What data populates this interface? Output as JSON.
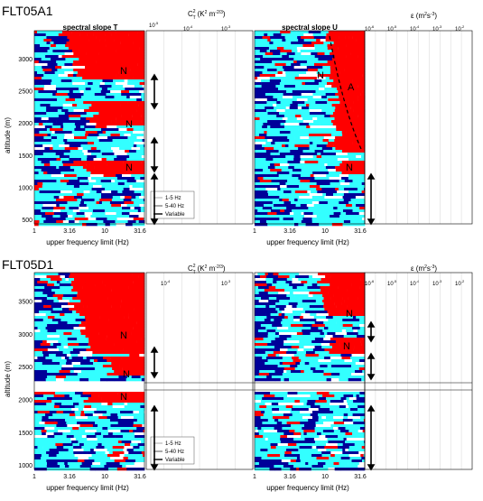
{
  "chart_data": [
    {
      "type": "heatmap",
      "figure": "FLT05A1",
      "panels": [
        {
          "title": "spectral slope T",
          "xlabel": "upper frequency limit (Hz)",
          "ylabel": "altitude (m)",
          "x_ticks": [
            "1",
            "3.16",
            "10",
            "31.6"
          ],
          "y_ticks": [
            "500",
            "1000",
            "1500",
            "2000",
            "2500",
            "3000"
          ],
          "ylim": [
            470,
            3450
          ],
          "x_scale": "log",
          "regions": [
            {
              "label": "N",
              "altitude": 3000
            },
            {
              "label": "N",
              "altitude": 2050
            },
            {
              "label": "N",
              "altitude": 1450
            }
          ]
        },
        {
          "title": "C_T^2 (K^2 m^-2/3)",
          "x_ticks": [
            "10^-5",
            "10^-4",
            "10^-3"
          ],
          "x_scale": "log",
          "series": [
            {
              "name": "1-5 Hz",
              "color": "#aaaaaa"
            },
            {
              "name": "5-40 Hz",
              "color": "#555555"
            },
            {
              "name": "Variable",
              "color": "#000000"
            }
          ],
          "arrows_altitude_ranges": [
            [
              2300,
              2700
            ],
            [
              1480,
              1900
            ],
            [
              470,
              1300
            ]
          ]
        },
        {
          "title": "spectral slope U",
          "xlabel": "upper frequency limit (Hz)",
          "x_ticks": [
            "1",
            "3.16",
            "10",
            "31.6"
          ],
          "x_scale": "log",
          "regions": [
            {
              "label": "N",
              "altitude": 2950
            },
            {
              "label": "A",
              "altitude": 2800
            },
            {
              "label": "N",
              "altitude": 1450
            }
          ]
        },
        {
          "title": "ε (m^2 s^-3)",
          "x_ticks": [
            "10^-6",
            "10^-5",
            "10^-4",
            "10^-3",
            "10^-2"
          ],
          "x_scale": "log",
          "arrows_altitude_ranges": [
            [
              470,
              1300
            ]
          ]
        }
      ]
    },
    {
      "type": "heatmap",
      "figure": "FLT05D1",
      "panels": [
        {
          "title": "spectral slope T",
          "xlabel": "upper frequency limit (Hz)",
          "ylabel": "altitude (m)",
          "x_ticks": [
            "1",
            "3.16",
            "10",
            "31.6"
          ],
          "y_ticks": [
            "1000",
            "1500",
            "2000",
            "2500",
            "3000",
            "3500"
          ],
          "ylim": [
            780,
            3650
          ],
          "x_scale": "log",
          "regions": [
            {
              "label": "N",
              "altitude": 3000
            },
            {
              "label": "N",
              "altitude": 2650
            },
            {
              "label": "N",
              "altitude": 1900
            }
          ]
        },
        {
          "title": "C_T^2 (K^2 m^-2/3)",
          "x_ticks": [
            "10^-4",
            "10^-3"
          ],
          "x_scale": "log",
          "series": [
            {
              "name": "1-5 Hz",
              "color": "#aaaaaa"
            },
            {
              "name": "5-40 Hz",
              "color": "#555555"
            },
            {
              "name": "Variable",
              "color": "#000000"
            }
          ],
          "arrows_altitude_ranges": [
            [
              2250,
              2650
            ],
            [
              780,
              1900
            ]
          ]
        },
        {
          "title": "spectral slope U",
          "xlabel": "upper frequency limit (Hz)",
          "x_ticks": [
            "1",
            "3.16",
            "10",
            "31.6"
          ],
          "x_scale": "log",
          "regions": [
            {
              "label": "N",
              "altitude": 3200
            },
            {
              "label": "N",
              "altitude": 2650
            }
          ]
        },
        {
          "title": "ε (m^2 s^-3)",
          "x_ticks": [
            "10^-6",
            "10^-5",
            "10^-4",
            "10^-3",
            "10^-2"
          ],
          "x_scale": "log",
          "arrows_altitude_ranges": [
            [
              2580,
              2850
            ],
            [
              2250,
              2550
            ],
            [
              780,
              1900
            ]
          ]
        }
      ]
    }
  ],
  "labels": {
    "fig1": "FLT05A1",
    "fig2": "FLT05D1",
    "slope_T": "spectral slope T",
    "slope_U": "spectral slope U",
    "ct2": "C",
    "ct2_sub": "T",
    "ct2_sup": "2",
    "ct2_unit_a": "(K",
    "ct2_unit_b": "2",
    "ct2_unit_c": " m",
    "ct2_unit_d": "-2/3",
    "ct2_unit_e": ")",
    "eps": "ε",
    "eps_unit_a": " (m",
    "eps_unit_b": "2",
    "eps_unit_c": "s",
    "eps_unit_d": "-3",
    "eps_unit_e": ")",
    "xlabel": "upper frequency limit (Hz)",
    "ylabel": "altitude (m)",
    "leg1": "1-5 Hz",
    "leg2": "5-40 Hz",
    "leg3": "Variable",
    "N": "N",
    "A": "A",
    "xt1": "1",
    "xt2": "3.16",
    "xt3": "10",
    "xt4": "31.6",
    "ct_top_5": "10",
    "ct_top_5e": "-5",
    "ct_top_4": "10",
    "ct_top_4e": "-4",
    "ct_top_3": "10",
    "ct_top_3e": "-3",
    "ep6": "10",
    "ep6e": "-6",
    "ep5": "10",
    "ep5e": "-5",
    "ep4": "10",
    "ep4e": "-4",
    "ep3": "10",
    "ep3e": "-3",
    "ep2": "10",
    "ep2e": "-2",
    "yA": [
      "500",
      "1000",
      "1500",
      "2000",
      "2500",
      "3000"
    ],
    "yD": [
      "1000",
      "1500",
      "2000",
      "2500",
      "3000",
      "3500"
    ]
  },
  "colors": {
    "red": "#ff0000",
    "cyan": "#33ffff",
    "navy": "#000099",
    "white": "#ffffff"
  }
}
